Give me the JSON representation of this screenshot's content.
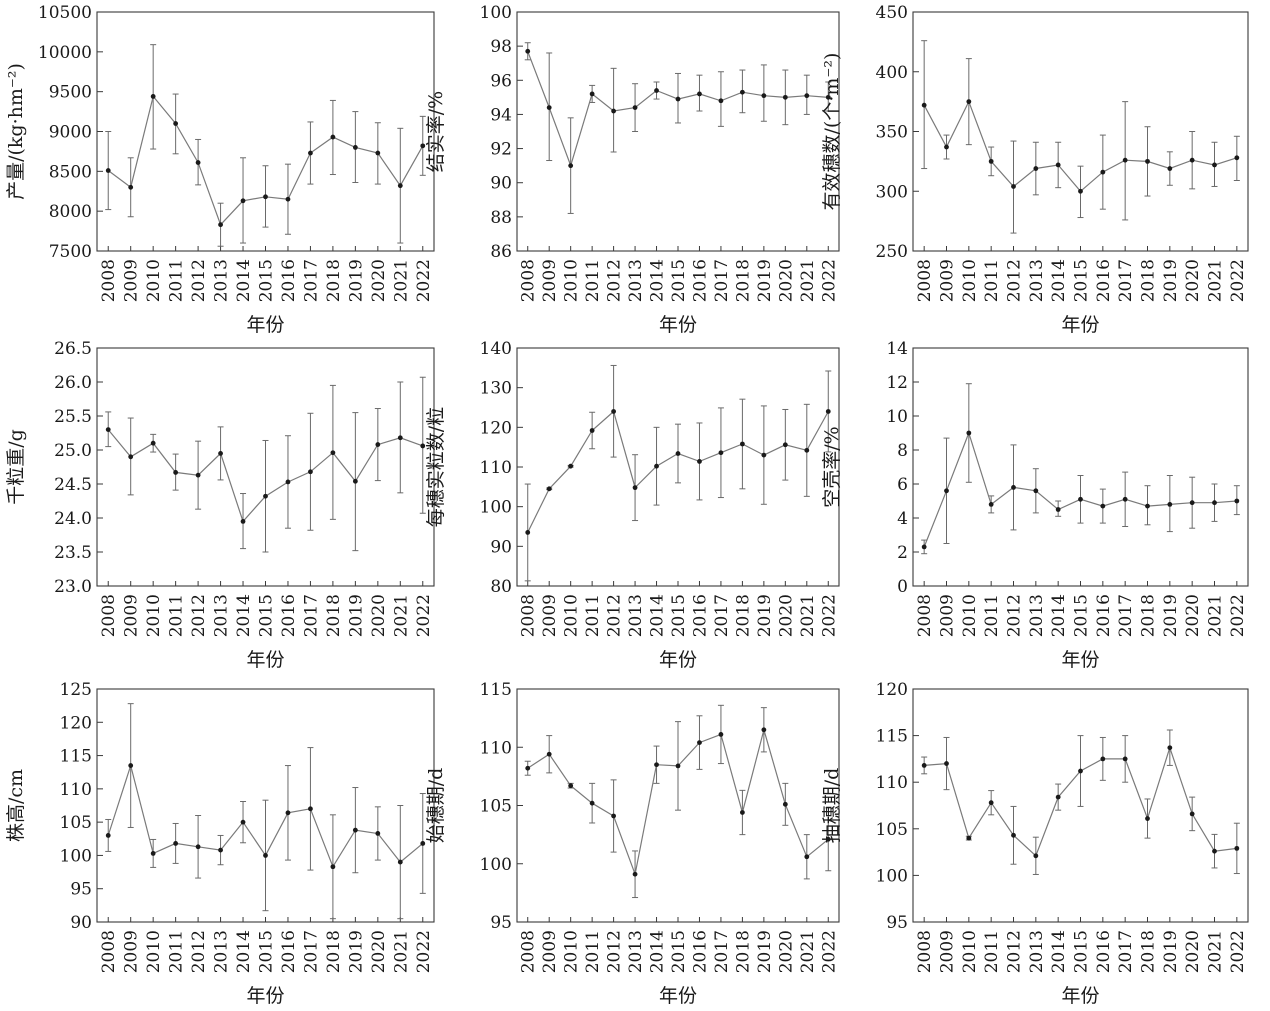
{
  "chart_data": [
    {
      "type": "line",
      "xlabel": "年份",
      "ylabel": "产量/(kg·hm⁻²)",
      "ylim": [
        7500,
        10500
      ],
      "yticks": [
        7500,
        8000,
        8500,
        9000,
        9500,
        10000,
        10500
      ],
      "categories": [
        "2008",
        "2009",
        "2010",
        "2011",
        "2012",
        "2013",
        "2014",
        "2015",
        "2016",
        "2017",
        "2018",
        "2019",
        "2020",
        "2021",
        "2022"
      ],
      "values": [
        8510,
        8300,
        9440,
        9100,
        8610,
        7830,
        8130,
        8180,
        8150,
        8730,
        8930,
        8800,
        8730,
        8320,
        8820
      ],
      "error_low": [
        8020,
        7930,
        8780,
        8720,
        8330,
        7560,
        7600,
        7800,
        7710,
        8340,
        8460,
        8360,
        8340,
        7600,
        8450
      ],
      "error_high": [
        9000,
        8670,
        10090,
        9470,
        8900,
        8100,
        8670,
        8570,
        8590,
        9120,
        9390,
        9250,
        9110,
        9040,
        9190
      ]
    },
    {
      "type": "line",
      "xlabel": "年份",
      "ylabel": "结实率/%",
      "ylim": [
        86,
        100
      ],
      "yticks": [
        86,
        88,
        90,
        92,
        94,
        96,
        98,
        100
      ],
      "categories": [
        "2008",
        "2009",
        "2010",
        "2011",
        "2012",
        "2013",
        "2014",
        "2015",
        "2016",
        "2017",
        "2018",
        "2019",
        "2020",
        "2021",
        "2022"
      ],
      "values": [
        97.7,
        94.4,
        91.0,
        95.2,
        94.2,
        94.4,
        95.4,
        94.9,
        95.2,
        94.8,
        95.3,
        95.1,
        95.0,
        95.1,
        95.0
      ],
      "error_low": [
        97.2,
        91.3,
        88.2,
        94.7,
        91.8,
        93.0,
        94.9,
        93.5,
        94.2,
        93.3,
        94.1,
        93.6,
        93.4,
        94.0,
        94.2
      ],
      "error_high": [
        98.2,
        97.6,
        93.8,
        95.7,
        96.7,
        95.8,
        95.9,
        96.4,
        96.3,
        96.5,
        96.6,
        96.9,
        96.6,
        96.3,
        95.9
      ]
    },
    {
      "type": "line",
      "xlabel": "年份",
      "ylabel": "有效穗数/(个·m⁻²)",
      "ylim": [
        250,
        450
      ],
      "yticks": [
        250,
        300,
        350,
        400,
        450
      ],
      "categories": [
        "2008",
        "2009",
        "2010",
        "2011",
        "2012",
        "2013",
        "2014",
        "2015",
        "2016",
        "2017",
        "2018",
        "2019",
        "2020",
        "2021",
        "2022"
      ],
      "values": [
        372,
        337,
        375,
        325,
        304,
        319,
        322,
        300,
        316,
        326,
        325,
        319,
        326,
        322,
        328
      ],
      "error_low": [
        319,
        327,
        339,
        313,
        265,
        297,
        303,
        278,
        285,
        276,
        296,
        305,
        302,
        304,
        309
      ],
      "error_high": [
        426,
        347,
        411,
        337,
        342,
        341,
        341,
        321,
        347,
        375,
        354,
        333,
        350,
        341,
        346
      ]
    },
    {
      "type": "line",
      "xlabel": "年份",
      "ylabel": "千粒重/g",
      "ylim": [
        23.0,
        26.5
      ],
      "yticks": [
        23.0,
        23.5,
        24.0,
        24.5,
        25.0,
        25.5,
        26.0,
        26.5
      ],
      "categories": [
        "2008",
        "2009",
        "2010",
        "2011",
        "2012",
        "2013",
        "2014",
        "2015",
        "2016",
        "2017",
        "2018",
        "2019",
        "2020",
        "2021",
        "2022"
      ],
      "values": [
        25.3,
        24.9,
        25.1,
        24.67,
        24.63,
        24.95,
        23.95,
        24.32,
        24.53,
        24.68,
        24.96,
        24.54,
        25.08,
        25.18,
        25.06
      ],
      "error_low": [
        25.05,
        24.34,
        24.97,
        24.41,
        24.13,
        24.56,
        23.55,
        23.5,
        23.85,
        23.82,
        23.98,
        23.52,
        24.55,
        24.37,
        24.07
      ],
      "error_high": [
        25.56,
        25.47,
        25.23,
        24.94,
        25.13,
        25.34,
        24.36,
        25.14,
        25.21,
        25.54,
        25.95,
        25.55,
        25.61,
        26.0,
        26.07
      ]
    },
    {
      "type": "line",
      "xlabel": "年份",
      "ylabel": "每穗实粒数/粒",
      "ylim": [
        80,
        140
      ],
      "yticks": [
        80,
        90,
        100,
        110,
        120,
        130,
        140
      ],
      "categories": [
        "2008",
        "2009",
        "2010",
        "2011",
        "2012",
        "2013",
        "2014",
        "2015",
        "2016",
        "2017",
        "2018",
        "2019",
        "2020",
        "2021",
        "2022"
      ],
      "values": [
        93.5,
        104.5,
        110.2,
        119.2,
        124.0,
        104.8,
        110.2,
        113.4,
        111.4,
        113.6,
        115.8,
        113.0,
        115.6,
        114.2,
        124.0
      ],
      "error_low": [
        81.3,
        104.3,
        110.0,
        114.6,
        112.5,
        96.5,
        100.4,
        106.0,
        101.7,
        102.3,
        104.5,
        100.6,
        106.7,
        102.6,
        113.8
      ],
      "error_high": [
        105.7,
        104.7,
        110.4,
        123.8,
        135.6,
        113.1,
        120.0,
        120.8,
        121.1,
        124.9,
        127.1,
        125.4,
        124.5,
        125.8,
        134.2
      ]
    },
    {
      "type": "line",
      "xlabel": "年份",
      "ylabel": "空壳率/%",
      "ylim": [
        0,
        14
      ],
      "yticks": [
        0,
        2,
        4,
        6,
        8,
        10,
        12,
        14
      ],
      "categories": [
        "2008",
        "2009",
        "2010",
        "2011",
        "2012",
        "2013",
        "2014",
        "2015",
        "2016",
        "2017",
        "2018",
        "2019",
        "2020",
        "2021",
        "2022"
      ],
      "values": [
        2.3,
        5.6,
        9.0,
        4.8,
        5.8,
        5.6,
        4.5,
        5.1,
        4.7,
        5.1,
        4.7,
        4.8,
        4.9,
        4.9,
        5.0
      ],
      "error_low": [
        1.9,
        2.5,
        6.1,
        4.3,
        3.3,
        4.3,
        4.1,
        3.7,
        3.7,
        3.5,
        3.6,
        3.2,
        3.4,
        3.8,
        4.2
      ],
      "error_high": [
        2.7,
        8.7,
        11.9,
        5.3,
        8.3,
        6.9,
        5.0,
        6.5,
        5.7,
        6.7,
        5.9,
        6.5,
        6.4,
        6.0,
        5.9
      ]
    },
    {
      "type": "line",
      "xlabel": "年份",
      "ylabel": "株高/cm",
      "ylim": [
        90,
        125
      ],
      "yticks": [
        90,
        95,
        100,
        105,
        110,
        115,
        120,
        125
      ],
      "categories": [
        "2008",
        "2009",
        "2010",
        "2011",
        "2012",
        "2013",
        "2014",
        "2015",
        "2016",
        "2017",
        "2018",
        "2019",
        "2020",
        "2021",
        "2022"
      ],
      "values": [
        103.0,
        113.5,
        100.3,
        101.8,
        101.3,
        100.8,
        105.0,
        100.0,
        106.4,
        107.0,
        98.3,
        103.8,
        103.3,
        99.0,
        101.8
      ],
      "error_low": [
        100.6,
        104.2,
        98.2,
        98.8,
        96.6,
        98.6,
        101.9,
        91.7,
        99.3,
        97.8,
        90.5,
        97.4,
        99.3,
        90.5,
        94.3
      ],
      "error_high": [
        105.4,
        122.8,
        102.4,
        104.8,
        106.0,
        103.0,
        108.1,
        108.3,
        113.5,
        116.2,
        106.1,
        110.2,
        107.3,
        107.5,
        109.3
      ]
    },
    {
      "type": "line",
      "xlabel": "年份",
      "ylabel": "始穗期/d",
      "ylim": [
        95,
        115
      ],
      "yticks": [
        95,
        100,
        105,
        110,
        115
      ],
      "categories": [
        "2008",
        "2009",
        "2010",
        "2011",
        "2012",
        "2013",
        "2014",
        "2015",
        "2016",
        "2017",
        "2018",
        "2019",
        "2020",
        "2021",
        "2022"
      ],
      "values": [
        108.2,
        109.4,
        106.7,
        105.2,
        104.1,
        99.1,
        108.5,
        108.4,
        110.4,
        111.1,
        104.4,
        111.5,
        105.1,
        100.6,
        102.1
      ],
      "error_low": [
        107.6,
        107.8,
        106.5,
        103.5,
        101.0,
        97.1,
        106.9,
        104.6,
        108.1,
        108.6,
        102.5,
        109.6,
        103.3,
        98.7,
        99.4
      ],
      "error_high": [
        108.8,
        111.0,
        106.9,
        106.9,
        107.2,
        101.1,
        110.1,
        112.2,
        112.7,
        113.6,
        106.3,
        113.4,
        106.9,
        102.5,
        104.8
      ]
    },
    {
      "type": "line",
      "xlabel": "年份",
      "ylabel": "抽穗期/d",
      "ylim": [
        95,
        120
      ],
      "yticks": [
        95,
        100,
        105,
        110,
        115,
        120
      ],
      "categories": [
        "2008",
        "2009",
        "2010",
        "2011",
        "2012",
        "2013",
        "2014",
        "2015",
        "2016",
        "2017",
        "2018",
        "2019",
        "2020",
        "2021",
        "2022"
      ],
      "values": [
        111.8,
        112.0,
        104.0,
        107.8,
        104.3,
        102.1,
        108.4,
        111.2,
        112.5,
        112.5,
        106.1,
        113.7,
        106.6,
        102.6,
        102.9
      ],
      "error_low": [
        110.9,
        109.2,
        103.8,
        106.5,
        101.2,
        100.1,
        107.0,
        107.4,
        110.2,
        110.0,
        104.0,
        111.8,
        104.8,
        100.8,
        100.2
      ],
      "error_high": [
        112.7,
        114.8,
        104.2,
        109.1,
        107.4,
        104.1,
        109.8,
        115.0,
        114.8,
        115.0,
        108.2,
        115.6,
        108.4,
        104.4,
        105.6
      ]
    }
  ]
}
